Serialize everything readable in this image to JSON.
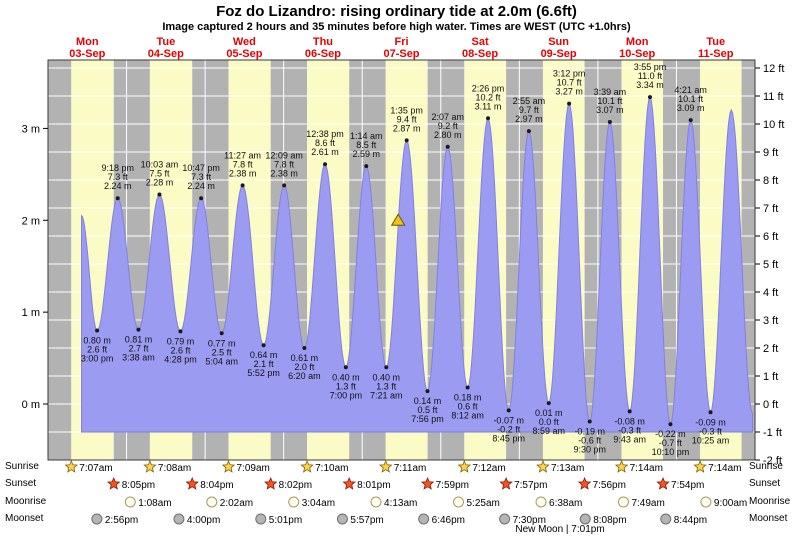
{
  "title": "Foz do Lizandro: rising  ordinary tide at 2.0m (6.6ft)",
  "subtitle": "Image captured 2 hours and 35 minutes before high water. Times are WEST (UTC +1.0hrs)",
  "new_moon": {
    "text": "New Moon | 7:01pm"
  },
  "colors": {
    "day_band": "#fbfbc6",
    "night_band": "#b2b2b2",
    "tide_fill": "#9b9bf2",
    "tide_edge": "#8282dd",
    "grid": "#ffffff",
    "day_label": "#e60000",
    "annotation": "#111111",
    "marker_fill": "#edc11e",
    "marker_edge": "#6b5400",
    "sunrise_star": "#ffd24a",
    "sunrise_star_edge": "#806000",
    "sunset_star": "#ff4f1f",
    "sunset_star_edge": "#801c00",
    "moonrise_fill": "#fffdf0",
    "moonrise_edge": "#a89c55",
    "moonset_fill": "#b5b5b5",
    "moonset_edge": "#6e6e6e"
  },
  "almanac": {
    "sunrise": {
      "label": "Sunrise",
      "entries": [
        {
          "day": 0,
          "time": "7:07am"
        },
        {
          "day": 1,
          "time": "7:08am"
        },
        {
          "day": 2,
          "time": "7:09am"
        },
        {
          "day": 3,
          "time": "7:10am"
        },
        {
          "day": 4,
          "time": "7:11am"
        },
        {
          "day": 5,
          "time": "7:12am"
        },
        {
          "day": 6,
          "time": "7:13am"
        },
        {
          "day": 7,
          "time": "7:14am"
        },
        {
          "day": 8,
          "time": "7:14am"
        }
      ]
    },
    "sunset": {
      "label": "Sunset",
      "entries": [
        {
          "day": 0,
          "time": "8:05pm"
        },
        {
          "day": 1,
          "time": "8:04pm"
        },
        {
          "day": 2,
          "time": "8:02pm"
        },
        {
          "day": 3,
          "time": "8:01pm"
        },
        {
          "day": 4,
          "time": "7:59pm"
        },
        {
          "day": 5,
          "time": "7:57pm"
        },
        {
          "day": 6,
          "time": "7:56pm"
        },
        {
          "day": 7,
          "time": "7:54pm"
        }
      ]
    },
    "moonrise": {
      "label": "Moonrise",
      "entries": [
        {
          "day": 1,
          "time": "1:08am"
        },
        {
          "day": 2,
          "time": "2:02am"
        },
        {
          "day": 3,
          "time": "3:04am"
        },
        {
          "day": 4,
          "time": "4:13am"
        },
        {
          "day": 5,
          "time": "5:25am"
        },
        {
          "day": 6,
          "time": "6:38am"
        },
        {
          "day": 7,
          "time": "7:49am"
        },
        {
          "day": 8,
          "time": "9:00am"
        }
      ]
    },
    "moonset": {
      "label": "Moonset",
      "entries": [
        {
          "day": 0,
          "time": "2:56pm"
        },
        {
          "day": 1,
          "time": "4:00pm"
        },
        {
          "day": 2,
          "time": "5:01pm"
        },
        {
          "day": 3,
          "time": "5:57pm"
        },
        {
          "day": 4,
          "time": "6:46pm"
        },
        {
          "day": 5,
          "time": "7:30pm"
        },
        {
          "day": 6,
          "time": "8:08pm"
        },
        {
          "day": 7,
          "time": "8:44pm"
        }
      ]
    }
  },
  "chart_data": {
    "type": "area",
    "title": "Foz do Lizandro tide height curve",
    "y_axis_left": {
      "unit": "m",
      "ticks": [
        3,
        2,
        1,
        0
      ]
    },
    "y_axis_right": {
      "unit": "ft",
      "ticks": [
        12,
        11,
        10,
        9,
        8,
        7,
        6,
        5,
        4,
        3,
        2,
        1,
        0,
        -1,
        -2
      ]
    },
    "baseline_ft": -1,
    "days": [
      {
        "label": "Mon",
        "date": "03-Sep"
      },
      {
        "label": "Tue",
        "date": "04-Sep"
      },
      {
        "label": "Wed",
        "date": "05-Sep"
      },
      {
        "label": "Thu",
        "date": "06-Sep"
      },
      {
        "label": "Fri",
        "date": "07-Sep"
      },
      {
        "label": "Sat",
        "date": "08-Sep"
      },
      {
        "label": "Sun",
        "date": "09-Sep"
      },
      {
        "label": "Mon",
        "date": "10-Sep"
      },
      {
        "label": "Tue",
        "date": "11-Sep"
      }
    ],
    "events": [
      {
        "day": 0,
        "time": "10:15 am",
        "type": "high",
        "m": 2.05,
        "annotated": false
      },
      {
        "day": 0,
        "time": "3:00 pm",
        "type": "low",
        "m": 0.8,
        "ft": 2.6
      },
      {
        "day": 0,
        "time": "9:18 pm",
        "type": "high",
        "m": 2.24,
        "ft": 7.3
      },
      {
        "day": 1,
        "time": "3:38 am",
        "type": "low",
        "m": 0.81,
        "ft": 2.7
      },
      {
        "day": 1,
        "time": "10:03 am",
        "type": "high",
        "m": 2.28,
        "ft": 7.5
      },
      {
        "day": 1,
        "time": "4:28 pm",
        "type": "low",
        "m": 0.79,
        "ft": 2.6
      },
      {
        "day": 1,
        "time": "10:47 pm",
        "type": "high",
        "m": 2.24,
        "ft": 7.3
      },
      {
        "day": 2,
        "time": "5:04 am",
        "type": "low",
        "m": 0.77,
        "ft": 2.5
      },
      {
        "day": 2,
        "time": "11:27 am",
        "type": "high",
        "m": 2.38,
        "ft": 7.8
      },
      {
        "day": 2,
        "time": "5:52 pm",
        "type": "low",
        "m": 0.64,
        "ft": 2.1
      },
      {
        "day": 3,
        "time": "12:09 am",
        "type": "high",
        "m": 2.38,
        "ft": 7.8
      },
      {
        "day": 3,
        "time": "6:20 am",
        "type": "low",
        "m": 0.61,
        "ft": 2.0
      },
      {
        "day": 3,
        "time": "12:38 pm",
        "type": "high",
        "m": 2.61,
        "ft": 8.6
      },
      {
        "day": 3,
        "time": "7:00 pm",
        "type": "low",
        "m": 0.4,
        "ft": 1.3
      },
      {
        "day": 4,
        "time": "1:14 am",
        "type": "high",
        "m": 2.59,
        "ft": 8.5
      },
      {
        "day": 4,
        "time": "7:21 am",
        "type": "low",
        "m": 0.4,
        "ft": 1.3
      },
      {
        "day": 4,
        "time": "1:35 pm",
        "type": "high",
        "m": 2.87,
        "ft": 9.4
      },
      {
        "day": 4,
        "time": "7:56 pm",
        "type": "low",
        "m": 0.14,
        "ft": 0.5
      },
      {
        "day": 5,
        "time": "2:07 am",
        "type": "high",
        "m": 2.8,
        "ft": 9.2
      },
      {
        "day": 5,
        "time": "8:12 am",
        "type": "low",
        "m": 0.18,
        "ft": 0.6
      },
      {
        "day": 5,
        "time": "2:26 pm",
        "type": "high",
        "m": 3.11,
        "ft": 10.2
      },
      {
        "day": 5,
        "time": "8:45 pm",
        "type": "low",
        "m": -0.07,
        "ft": -0.2
      },
      {
        "day": 6,
        "time": "2:55 am",
        "type": "high",
        "m": 2.97,
        "ft": 9.7
      },
      {
        "day": 6,
        "time": "8:59 am",
        "type": "low",
        "m": 0.01,
        "ft": 0.0
      },
      {
        "day": 6,
        "time": "3:12 pm",
        "type": "high",
        "m": 3.27,
        "ft": 10.7
      },
      {
        "day": 6,
        "time": "9:30 pm",
        "type": "low",
        "m": -0.19,
        "ft": -0.6
      },
      {
        "day": 7,
        "time": "3:39 am",
        "type": "high",
        "m": 3.07,
        "ft": 10.1
      },
      {
        "day": 7,
        "time": "9:43 am",
        "type": "low",
        "m": -0.08,
        "ft": -0.3
      },
      {
        "day": 7,
        "time": "3:55 pm",
        "type": "high",
        "m": 3.34,
        "ft": 11.0
      },
      {
        "day": 7,
        "time": "10:10 pm",
        "type": "low",
        "m": -0.22,
        "ft": -0.7
      },
      {
        "day": 8,
        "time": "4:21 am",
        "type": "high",
        "m": 3.09,
        "ft": 10.1
      },
      {
        "day": 8,
        "time": "10:25 am",
        "type": "low",
        "m": -0.09,
        "ft": -0.3
      },
      {
        "day": 8,
        "time": "4:45 pm",
        "type": "high",
        "m": 3.2,
        "annotated": false
      },
      {
        "day": 8,
        "time": "11:15 pm",
        "type": "low",
        "m": -0.1,
        "annotated": false
      }
    ],
    "current_marker": {
      "day": 4,
      "time": "11:00 am",
      "m": 2.0
    }
  }
}
